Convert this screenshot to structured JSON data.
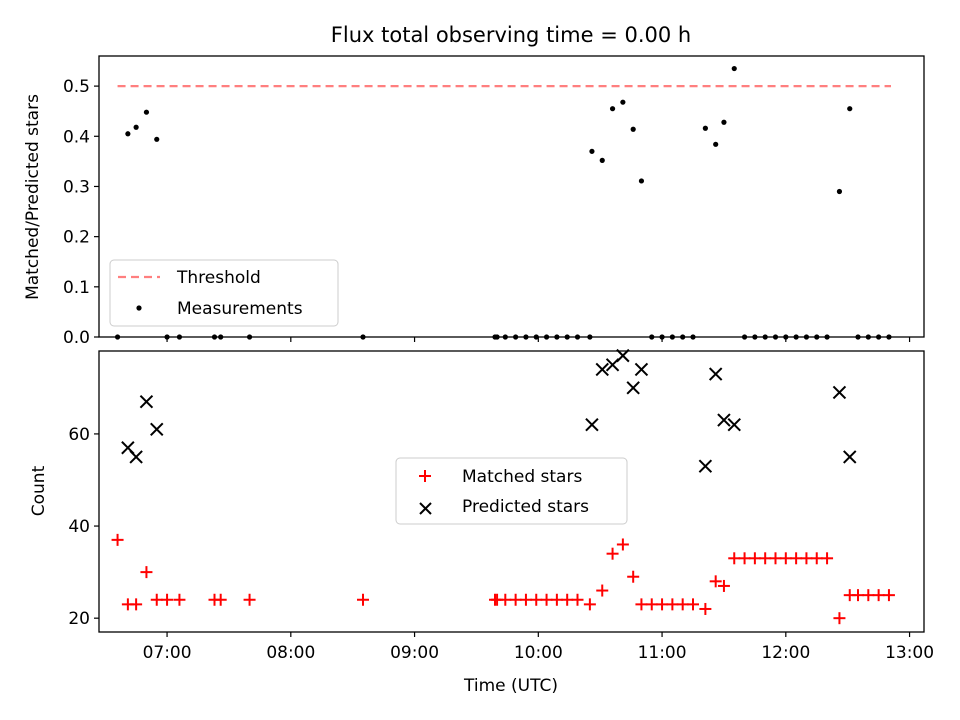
{
  "chart_data": [
    {
      "type": "scatter",
      "title": "Flux total observing time = 0.00 h",
      "xlabel": "",
      "ylabel": "Matched/Predicted stars",
      "xlim": [
        "06:27",
        "13:07"
      ],
      "ylim": [
        0,
        0.56
      ],
      "yticks": [
        0.0,
        0.1,
        0.2,
        0.3,
        0.4,
        0.5
      ],
      "ytick_labels": [
        "0.0",
        "0.1",
        "0.2",
        "0.3",
        "0.4",
        "0.5"
      ],
      "grid": false,
      "legend": "lower-left",
      "threshold": {
        "name": "Threshold",
        "y": 0.5,
        "x_start": "06:36",
        "x_end": "12:51",
        "color": "#ff7f7f"
      },
      "series": [
        {
          "name": "Measurements",
          "color": "#000000",
          "marker": "dot",
          "points": [
            [
              "06:36",
              0.0
            ],
            [
              "06:41",
              0.405
            ],
            [
              "06:45",
              0.418
            ],
            [
              "06:50",
              0.448
            ],
            [
              "06:55",
              0.394
            ],
            [
              "07:00",
              0.0
            ],
            [
              "07:06",
              0.0
            ],
            [
              "07:23",
              0.0
            ],
            [
              "07:26",
              0.0
            ],
            [
              "07:40",
              0.0
            ],
            [
              "08:35",
              0.0
            ],
            [
              "09:39",
              0.0
            ],
            [
              "09:40",
              0.0
            ],
            [
              "09:44",
              0.0
            ],
            [
              "09:49",
              0.0
            ],
            [
              "09:54",
              0.0
            ],
            [
              "09:59",
              0.0
            ],
            [
              "10:04",
              0.0
            ],
            [
              "10:09",
              0.0
            ],
            [
              "10:14",
              0.0
            ],
            [
              "10:19",
              0.0
            ],
            [
              "10:25",
              0.0
            ],
            [
              "10:26",
              0.37
            ],
            [
              "10:31",
              0.352
            ],
            [
              "10:36",
              0.455
            ],
            [
              "10:41",
              0.468
            ],
            [
              "10:46",
              0.414
            ],
            [
              "10:50",
              0.311
            ],
            [
              "10:55",
              0.0
            ],
            [
              "11:00",
              0.0
            ],
            [
              "11:05",
              0.0
            ],
            [
              "11:10",
              0.0
            ],
            [
              "11:15",
              0.0
            ],
            [
              "11:21",
              0.416
            ],
            [
              "11:26",
              0.384
            ],
            [
              "11:30",
              0.428
            ],
            [
              "11:35",
              0.535
            ],
            [
              "11:40",
              0.0
            ],
            [
              "11:45",
              0.0
            ],
            [
              "11:50",
              0.0
            ],
            [
              "11:55",
              0.0
            ],
            [
              "12:00",
              0.0
            ],
            [
              "12:05",
              0.0
            ],
            [
              "12:10",
              0.0
            ],
            [
              "12:15",
              0.0
            ],
            [
              "12:20",
              0.0
            ],
            [
              "12:26",
              0.29
            ],
            [
              "12:31",
              0.455
            ],
            [
              "12:35",
              0.0
            ],
            [
              "12:40",
              0.0
            ],
            [
              "12:45",
              0.0
            ],
            [
              "12:50",
              0.0
            ]
          ]
        }
      ]
    },
    {
      "type": "scatter",
      "title": "",
      "xlabel": "Time (UTC)",
      "ylabel": "Count",
      "xlim": [
        "06:27",
        "13:07"
      ],
      "ylim": [
        17,
        78
      ],
      "xticks": [
        "07:00",
        "08:00",
        "09:00",
        "10:00",
        "11:00",
        "12:00",
        "13:00"
      ],
      "xtick_labels": [
        "07:00",
        "08:00",
        "09:00",
        "10:00",
        "11:00",
        "12:00",
        "13:00"
      ],
      "yticks": [
        20,
        40,
        60
      ],
      "ytick_labels": [
        "20",
        "40",
        "60"
      ],
      "grid": false,
      "legend": "center",
      "series": [
        {
          "name": "Matched stars",
          "color": "#ff0000",
          "marker": "plus",
          "points": [
            [
              "06:36",
              37
            ],
            [
              "06:41",
              23
            ],
            [
              "06:45",
              23
            ],
            [
              "06:50",
              30
            ],
            [
              "06:55",
              24
            ],
            [
              "07:00",
              24
            ],
            [
              "07:06",
              24
            ],
            [
              "07:23",
              24
            ],
            [
              "07:26",
              24
            ],
            [
              "07:40",
              24
            ],
            [
              "08:35",
              24
            ],
            [
              "09:39",
              24
            ],
            [
              "09:40",
              24
            ],
            [
              "09:44",
              24
            ],
            [
              "09:49",
              24
            ],
            [
              "09:54",
              24
            ],
            [
              "09:59",
              24
            ],
            [
              "10:04",
              24
            ],
            [
              "10:09",
              24
            ],
            [
              "10:14",
              24
            ],
            [
              "10:19",
              24
            ],
            [
              "10:25",
              23
            ],
            [
              "10:31",
              26
            ],
            [
              "10:36",
              34
            ],
            [
              "10:41",
              36
            ],
            [
              "10:46",
              29
            ],
            [
              "10:50",
              23
            ],
            [
              "10:55",
              23
            ],
            [
              "11:00",
              23
            ],
            [
              "11:05",
              23
            ],
            [
              "11:10",
              23
            ],
            [
              "11:15",
              23
            ],
            [
              "11:21",
              22
            ],
            [
              "11:26",
              28
            ],
            [
              "11:30",
              27
            ],
            [
              "11:35",
              33
            ],
            [
              "11:40",
              33
            ],
            [
              "11:45",
              33
            ],
            [
              "11:50",
              33
            ],
            [
              "11:55",
              33
            ],
            [
              "12:00",
              33
            ],
            [
              "12:05",
              33
            ],
            [
              "12:10",
              33
            ],
            [
              "12:15",
              33
            ],
            [
              "12:20",
              33
            ],
            [
              "12:26",
              20
            ],
            [
              "12:31",
              25
            ],
            [
              "12:35",
              25
            ],
            [
              "12:40",
              25
            ],
            [
              "12:45",
              25
            ],
            [
              "12:50",
              25
            ]
          ]
        },
        {
          "name": "Predicted stars",
          "color": "#000000",
          "marker": "x",
          "points": [
            [
              "06:41",
              57
            ],
            [
              "06:45",
              55
            ],
            [
              "06:50",
              67
            ],
            [
              "06:55",
              61
            ],
            [
              "10:26",
              62
            ],
            [
              "10:31",
              74
            ],
            [
              "10:36",
              75
            ],
            [
              "10:41",
              77
            ],
            [
              "10:46",
              70
            ],
            [
              "10:50",
              74
            ],
            [
              "11:21",
              53
            ],
            [
              "11:26",
              73
            ],
            [
              "11:30",
              63
            ],
            [
              "11:35",
              62
            ],
            [
              "12:26",
              69
            ],
            [
              "12:31",
              55
            ]
          ]
        }
      ]
    }
  ]
}
